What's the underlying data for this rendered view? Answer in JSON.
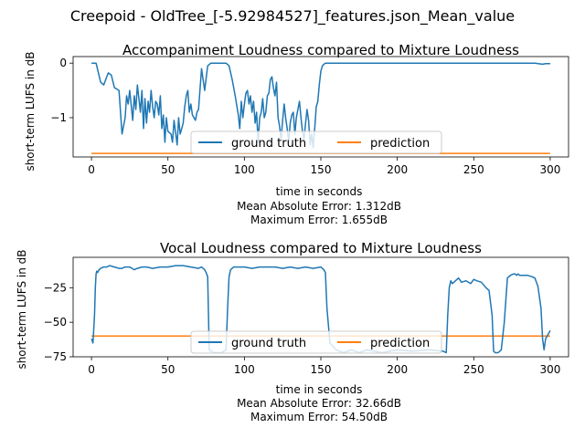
{
  "suptitle": "Creepoid - OldTree_[-5.92984527]_features.json_Mean_value",
  "colors": {
    "ground_truth": "#1f77b4",
    "prediction": "#ff7f0e"
  },
  "chart_data": [
    {
      "type": "line",
      "title": "Accompaniment Loudness compared to Mixture Loudness",
      "xlabel": "time in seconds",
      "ylabel": "short-term LUFS in dB",
      "xlim": [
        -12,
        312
      ],
      "ylim": [
        -1.72,
        0.12
      ],
      "xticks": [
        0,
        50,
        100,
        150,
        200,
        250,
        300
      ],
      "yticks": [
        0,
        -1
      ],
      "grid": false,
      "legend": {
        "placement": "lower center",
        "entries": [
          "ground truth",
          "prediction"
        ]
      },
      "annotations": [
        "Mean Absolute Error: 1.312dB",
        "Maximum Error: 1.655dB"
      ],
      "series": [
        {
          "name": "ground truth",
          "x": [
            0,
            3,
            6,
            8,
            10,
            11,
            13,
            15,
            18,
            20,
            22,
            23,
            24,
            25,
            27,
            28,
            29,
            30,
            32,
            33,
            34,
            35,
            36,
            37,
            38,
            39,
            40,
            41,
            42,
            43,
            44,
            45,
            46,
            47,
            48,
            49,
            50,
            52,
            53,
            54,
            56,
            57,
            58,
            59,
            60,
            61,
            62,
            63,
            64,
            65,
            66,
            67,
            68,
            69,
            70,
            72,
            74,
            76,
            78,
            80,
            85,
            88,
            90,
            92,
            94,
            96,
            97,
            98,
            99,
            100,
            101,
            102,
            103,
            104,
            105,
            106,
            107,
            108,
            109,
            110,
            111,
            112,
            113,
            114,
            115,
            116,
            117,
            118,
            119,
            120,
            121,
            122,
            123,
            124,
            125,
            126,
            127,
            128,
            129,
            130,
            131,
            132,
            133,
            134,
            135,
            136,
            137,
            138,
            139,
            140,
            141,
            142,
            143,
            144,
            145,
            146,
            147,
            148,
            149,
            150,
            151,
            152,
            153,
            155,
            160,
            170,
            180,
            200,
            230,
            260,
            280,
            290,
            295,
            297,
            300
          ],
          "values": [
            0,
            0,
            -0.35,
            -0.4,
            -0.25,
            -0.18,
            -0.22,
            -0.45,
            -0.5,
            -1.3,
            -1.0,
            -0.6,
            -0.75,
            -0.5,
            -1.05,
            -0.6,
            -0.85,
            -0.4,
            -0.9,
            -0.5,
            -1.2,
            -0.65,
            -1.1,
            -0.7,
            -0.9,
            -0.5,
            -0.8,
            -1.0,
            -0.7,
            -0.75,
            -0.95,
            -0.6,
            -1.2,
            -0.95,
            -1.45,
            -1.0,
            -1.25,
            -1.3,
            -1.45,
            -1.05,
            -1.5,
            -1.0,
            -1.3,
            -1.2,
            -1.1,
            -0.8,
            -0.6,
            -0.5,
            -0.9,
            -0.75,
            -0.95,
            -1.0,
            -1.05,
            -0.9,
            -0.85,
            -0.1,
            -0.5,
            -0.05,
            0,
            0,
            0,
            0,
            -0.05,
            -0.3,
            -0.6,
            -0.95,
            -1.2,
            -0.7,
            -1.0,
            -0.75,
            -0.55,
            -0.5,
            -0.75,
            -0.6,
            -0.9,
            -0.7,
            -1.1,
            -0.9,
            -1.45,
            -1.0,
            -0.9,
            -0.65,
            -1.0,
            -0.9,
            -0.6,
            -0.55,
            -0.3,
            -0.25,
            -0.45,
            -0.6,
            -0.35,
            -1.0,
            -1.15,
            -1.4,
            -1.05,
            -0.75,
            -1.0,
            -1.2,
            -1.45,
            -1.1,
            -0.95,
            -0.9,
            -1.3,
            -1.0,
            -0.85,
            -0.7,
            -1.0,
            -1.25,
            -1.4,
            -1.1,
            -0.85,
            -1.05,
            -1.5,
            -1.3,
            -1.55,
            -1.2,
            -0.8,
            -0.7,
            -0.4,
            -0.15,
            -0.05,
            -0.02,
            0,
            0,
            0,
            0,
            0,
            0,
            0,
            0,
            0,
            0,
            -0.02,
            -0.01,
            -0.01
          ]
        },
        {
          "name": "prediction",
          "x": [
            0,
            300
          ],
          "values": [
            -1.655,
            -1.655
          ]
        }
      ]
    },
    {
      "type": "line",
      "title": "Vocal Loudness compared to Mixture Loudness",
      "xlabel": "time in seconds",
      "ylabel": "short-term LUFS in dB",
      "xlim": [
        -12,
        312
      ],
      "ylim": [
        -75,
        -3
      ],
      "xticks": [
        0,
        50,
        100,
        150,
        200,
        250,
        300
      ],
      "yticks": [
        -25,
        -50,
        -75
      ],
      "grid": false,
      "legend": {
        "placement": "lower center",
        "entries": [
          "ground truth",
          "prediction"
        ]
      },
      "annotations": [
        "Mean Absolute Error: 32.66dB",
        "Maximum Error: 54.50dB"
      ],
      "series": [
        {
          "name": "ground truth",
          "x": [
            0,
            1,
            2,
            2.5,
            3,
            3.5,
            4,
            5,
            6,
            8,
            10,
            12,
            15,
            18,
            20,
            22,
            25,
            28,
            30,
            33,
            36,
            40,
            45,
            50,
            55,
            60,
            65,
            70,
            72,
            74,
            75,
            76,
            77,
            80,
            85,
            88,
            89,
            90,
            91,
            92,
            93,
            95,
            100,
            105,
            110,
            115,
            120,
            125,
            130,
            135,
            140,
            145,
            150,
            152,
            153,
            154,
            156,
            160,
            165,
            170,
            175,
            180,
            190,
            200,
            210,
            220,
            230,
            232,
            233,
            234,
            235,
            236,
            240,
            242,
            245,
            248,
            250,
            252,
            255,
            258,
            260,
            262,
            263,
            264,
            265,
            266,
            268,
            270,
            272,
            274,
            276,
            277,
            278,
            279,
            280,
            282,
            285,
            288,
            290,
            292,
            294,
            295,
            296,
            297,
            298,
            299,
            300
          ],
          "values": [
            -62,
            -65,
            -45,
            -25,
            -15,
            -13,
            -14,
            -12,
            -11,
            -10,
            -10,
            -9,
            -10,
            -11,
            -11,
            -10,
            -10,
            -12,
            -11,
            -10,
            -10,
            -11,
            -10,
            -10,
            -9,
            -9,
            -10,
            -11,
            -10,
            -12,
            -14,
            -17,
            -70,
            -72,
            -72,
            -70,
            -40,
            -17,
            -12,
            -11,
            -10,
            -10,
            -10,
            -11,
            -10,
            -10,
            -10,
            -11,
            -10,
            -11,
            -10,
            -11,
            -10,
            -12,
            -14,
            -40,
            -65,
            -70,
            -72,
            -70,
            -72,
            -70,
            -72,
            -70,
            -71,
            -70,
            -71,
            -72,
            -45,
            -25,
            -20,
            -22,
            -18,
            -21,
            -20,
            -22,
            -19,
            -20,
            -21,
            -25,
            -27,
            -45,
            -71,
            -72,
            -72,
            -72,
            -70,
            -50,
            -18,
            -16,
            -15,
            -15,
            -16,
            -15,
            -16,
            -16,
            -16,
            -17,
            -18,
            -24,
            -40,
            -62,
            -70,
            -62,
            -60,
            -58,
            -56
          ]
        },
        {
          "name": "prediction",
          "x": [
            0,
            300
          ],
          "values": [
            -60,
            -60
          ]
        }
      ]
    }
  ]
}
